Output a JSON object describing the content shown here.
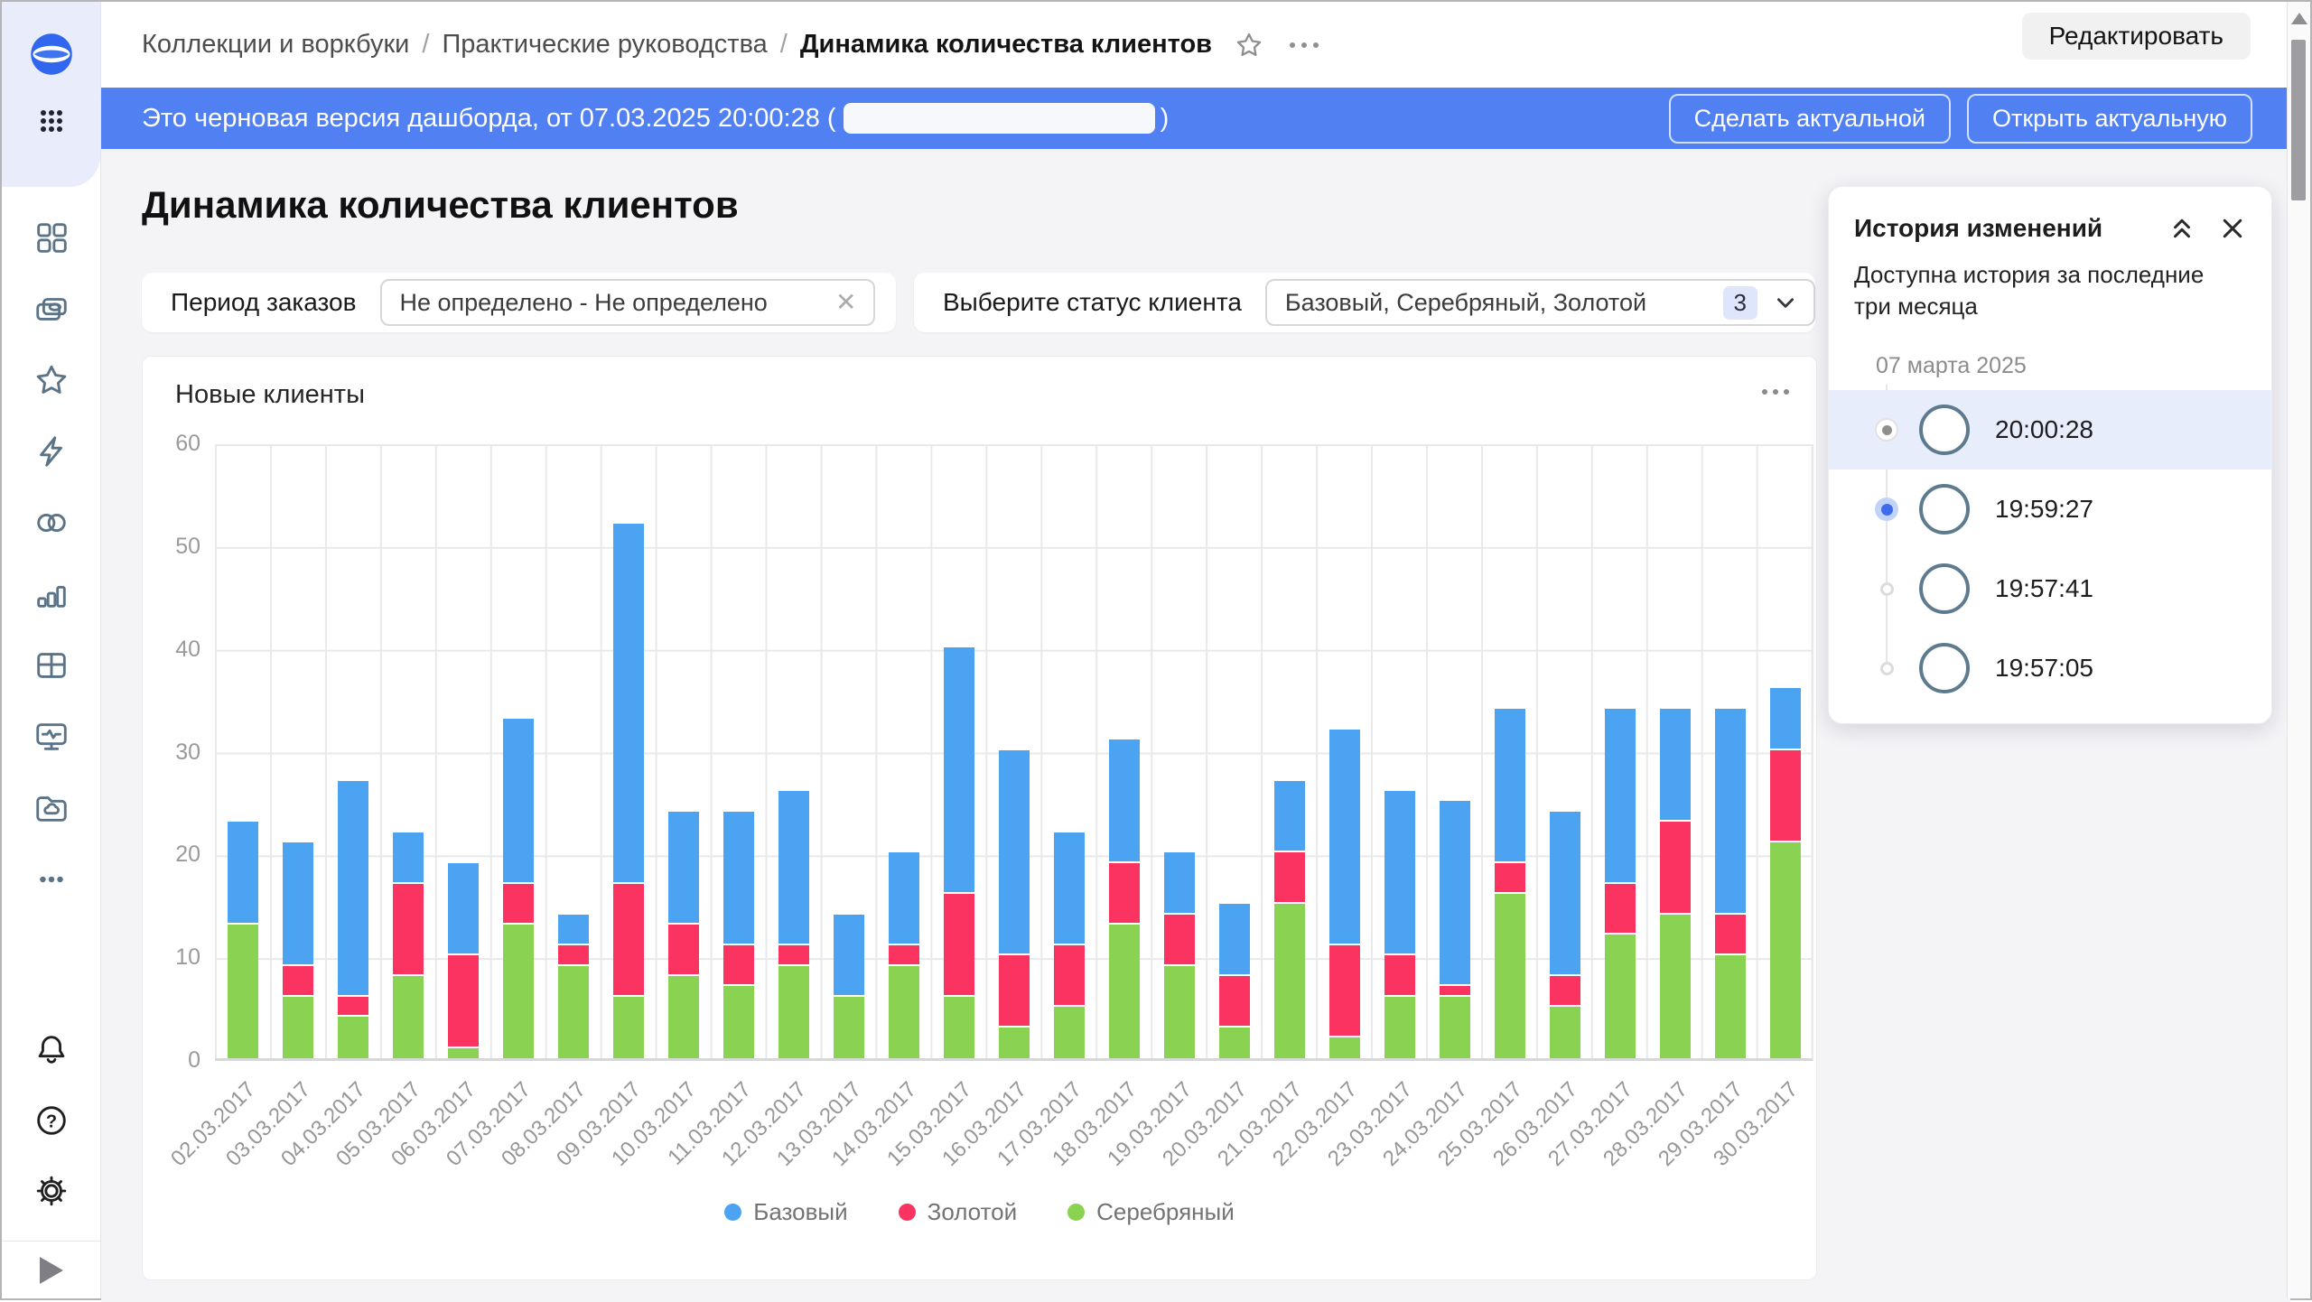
{
  "colors": {
    "banner_blue": "#5080f2",
    "sidebar_top_bg": "#e9edfb",
    "selection_highlight": "#e7edfb",
    "chart_blue": "#4ba3f1",
    "chart_red": "#fb3361",
    "chart_green": "#89d252"
  },
  "sidebar": {
    "icons": [
      "datalens-logo",
      "apps-grid",
      "dashboards",
      "collections",
      "favorites",
      "actions",
      "datasets",
      "charts",
      "tables",
      "monitoring",
      "storage",
      "more",
      "notifications",
      "help",
      "settings",
      "expand-sidebar"
    ]
  },
  "topbar": {
    "breadcrumbs": [
      "Коллекции и воркбуки",
      "Практические руководства",
      "Динамика количества клиентов"
    ],
    "edit_button": "Редактировать"
  },
  "banner": {
    "text_before": "Это черновая версия дашборда, от 07.03.2025 20:00:28 (",
    "text_after": ")",
    "actions": [
      "Сделать актуальной",
      "Открыть актуальную"
    ]
  },
  "page": {
    "title": "Динамика количества клиентов"
  },
  "filters": {
    "period": {
      "label": "Период заказов",
      "value": "Не определено - Не определено"
    },
    "status": {
      "label": "Выберите статус клиента",
      "value": "Базовый, Серебряный, Золотой",
      "count": "3"
    }
  },
  "chart": {
    "title": "Новые клиенты"
  },
  "chart_data": {
    "type": "bar",
    "stacked": true,
    "title": "Новые клиенты",
    "categories": [
      "02.03.2017",
      "03.03.2017",
      "04.03.2017",
      "05.03.2017",
      "06.03.2017",
      "07.03.2017",
      "08.03.2017",
      "09.03.2017",
      "10.03.2017",
      "11.03.2017",
      "12.03.2017",
      "13.03.2017",
      "14.03.2017",
      "15.03.2017",
      "16.03.2017",
      "17.03.2017",
      "18.03.2017",
      "19.03.2017",
      "20.03.2017",
      "21.03.2017",
      "22.03.2017",
      "23.03.2017",
      "24.03.2017",
      "25.03.2017",
      "26.03.2017",
      "27.03.2017",
      "28.03.2017",
      "29.03.2017",
      "30.03.2017"
    ],
    "series": [
      {
        "name": "Базовый",
        "color": "#4ba3f1",
        "values": [
          10,
          12,
          21,
          5,
          9,
          16,
          3,
          35,
          11,
          13,
          15,
          8,
          9,
          24,
          20,
          11,
          12,
          6,
          7,
          7,
          21,
          16,
          18,
          15,
          16,
          17,
          11,
          20,
          6
        ]
      },
      {
        "name": "Золотой",
        "color": "#fb3361",
        "values": [
          0,
          3,
          2,
          9,
          9,
          4,
          2,
          11,
          5,
          4,
          2,
          0,
          2,
          10,
          7,
          6,
          6,
          5,
          5,
          5,
          9,
          4,
          1,
          3,
          3,
          5,
          9,
          4,
          9
        ]
      },
      {
        "name": "Серебряный",
        "color": "#89d252",
        "values": [
          13,
          6,
          4,
          8,
          1,
          13,
          9,
          6,
          8,
          7,
          9,
          6,
          9,
          6,
          3,
          5,
          13,
          9,
          3,
          15,
          2,
          6,
          6,
          16,
          5,
          12,
          14,
          10,
          21
        ]
      }
    ],
    "stack_order_bottom_to_top": [
      "Серебряный",
      "Золотой",
      "Базовый"
    ],
    "ylim": [
      0,
      60
    ],
    "ytick_step": 10,
    "grid": true,
    "legend_position": "bottom",
    "xlabel": "",
    "ylabel": ""
  },
  "history_panel": {
    "title": "История изменений",
    "subtitle": "Доступна история за последние три месяца",
    "date_group": "07 марта 2025",
    "items": [
      {
        "time": "20:00:28",
        "state": "current",
        "highlighted": true
      },
      {
        "time": "19:59:27",
        "state": "selected",
        "highlighted": false
      },
      {
        "time": "19:57:41",
        "state": "default",
        "highlighted": false
      },
      {
        "time": "19:57:05",
        "state": "default",
        "highlighted": false
      }
    ]
  }
}
